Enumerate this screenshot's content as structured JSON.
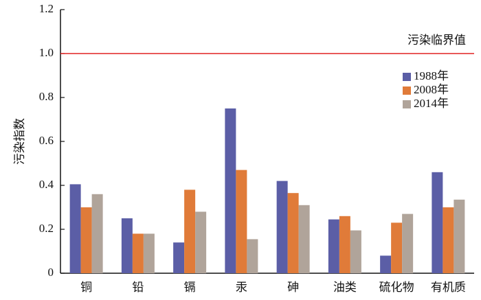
{
  "chart_data": {
    "type": "bar",
    "y_label": "污染指数",
    "categories": [
      "铜",
      "铅",
      "镉",
      "汞",
      "砷",
      "油类",
      "硫化物",
      "有机质"
    ],
    "series": [
      {
        "name": "1988年",
        "color": "#5b5ea6",
        "values": [
          0.405,
          0.25,
          0.14,
          0.75,
          0.42,
          0.245,
          0.08,
          0.46
        ]
      },
      {
        "name": "2008年",
        "color": "#e07b39",
        "values": [
          0.3,
          0.18,
          0.38,
          0.47,
          0.365,
          0.26,
          0.23,
          0.3
        ]
      },
      {
        "name": "2014年",
        "color": "#b0a49a",
        "values": [
          0.36,
          0.18,
          0.28,
          0.155,
          0.31,
          0.195,
          0.27,
          0.335
        ]
      }
    ],
    "ylim": [
      0,
      1.2
    ],
    "yticks": [
      0,
      0.2,
      0.4,
      0.6,
      0.8,
      {
        "value": 1,
        "label": "1.0"
      },
      1.2
    ],
    "threshold": {
      "value": 1,
      "label": "污染临界值",
      "color": "#e02020"
    },
    "legend": "upper right"
  }
}
